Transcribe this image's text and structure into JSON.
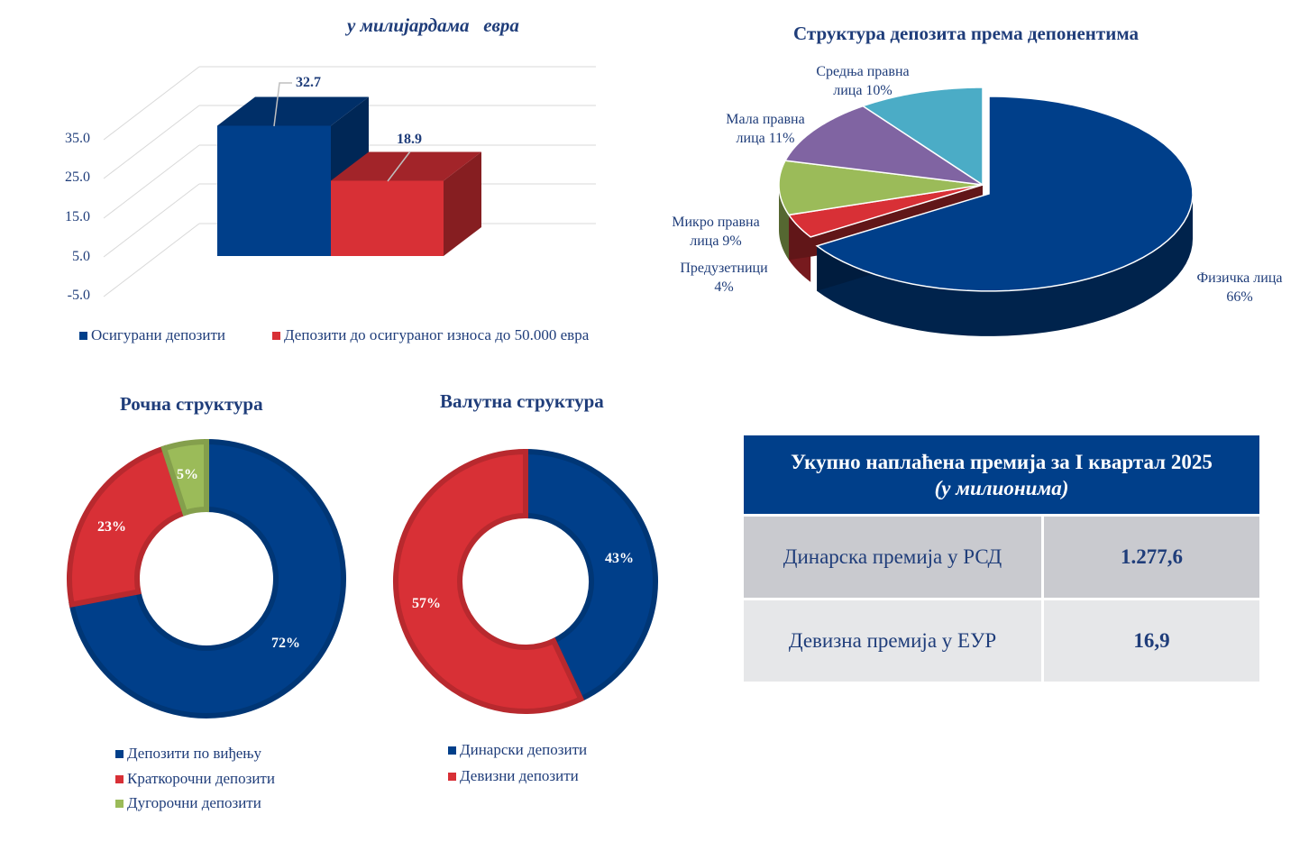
{
  "colors": {
    "blue": "#003f8a",
    "red": "#d83036",
    "green": "#9bbb59",
    "purple": "#8064a2",
    "teal": "#4bacc6",
    "text": "#1f3d7a"
  },
  "chart_data": [
    {
      "type": "bar",
      "title": "у милијардама   евра",
      "categories": [
        "Осигурани депозити",
        "Депозити до осигураног износа до 50.000 евра"
      ],
      "values": [
        32.7,
        18.9
      ],
      "data_labels": [
        "32.7",
        "18.9"
      ],
      "yticks": [
        "35.0",
        "25.0",
        "15.0",
        "5.0",
        "-5.0"
      ],
      "ylim": [
        -5,
        35
      ],
      "grid": true,
      "three_d": true,
      "legend": {
        "placement": "bottom",
        "entries": [
          "Осигурани депозити",
          "Депозити до осигураног износа до 50.000 евра"
        ]
      }
    },
    {
      "type": "pie",
      "three_d": true,
      "title": "Структура депозита према депонентима",
      "slices": [
        {
          "label": "Физичка лица",
          "value": 66,
          "text": "66%",
          "color": "#003f8a"
        },
        {
          "label": "Предузетници",
          "value": 4,
          "text": "4%",
          "color": "#d83036"
        },
        {
          "label": "Микро правна лица",
          "value": 9,
          "text": "9%",
          "color": "#9bbb59"
        },
        {
          "label": "Мала правна лица",
          "value": 11,
          "text": "11%",
          "color": "#8064a2"
        },
        {
          "label": "Средња правна лица",
          "value": 10,
          "text": "10%",
          "color": "#4bacc6"
        }
      ],
      "label_lines": {
        "fiz": [
          "Физичка лица",
          "66%"
        ],
        "pred": [
          "Предузетници",
          "4%"
        ],
        "mikro": [
          "Микро правна",
          "лица 9%"
        ],
        "mala": [
          "Мала правна",
          "лица 11%"
        ],
        "sred": [
          "Средња правна",
          "лица 10%"
        ]
      }
    },
    {
      "type": "pie",
      "donut": true,
      "title": "Рочна структура",
      "slices": [
        {
          "label": "Депозити по виђењу",
          "value": 72,
          "text": "72%",
          "color": "#003f8a"
        },
        {
          "label": "Краткорочни депозити",
          "value": 23,
          "text": "23%",
          "color": "#d83036"
        },
        {
          "label": "Дугорочни депозити",
          "value": 5,
          "text": "5%",
          "color": "#9bbb59"
        }
      ],
      "legend": {
        "placement": "bottom"
      }
    },
    {
      "type": "pie",
      "donut": true,
      "title": "Валутна структура",
      "slices": [
        {
          "label": "Динарски депозити",
          "value": 43,
          "text": "43%",
          "color": "#003f8a"
        },
        {
          "label": "Девизни депозити",
          "value": 57,
          "text": "57%",
          "color": "#d83036"
        }
      ],
      "legend": {
        "placement": "bottom"
      }
    }
  ],
  "premium_table": {
    "title": "Укупно наплаћена премија за I квартал 2025",
    "subtitle": "(у милионима)",
    "rows": [
      {
        "label": "Динарска премија у РСД",
        "value": "1.277,6"
      },
      {
        "label": "Девизна премија у ЕУР",
        "value": "16,9"
      }
    ]
  }
}
